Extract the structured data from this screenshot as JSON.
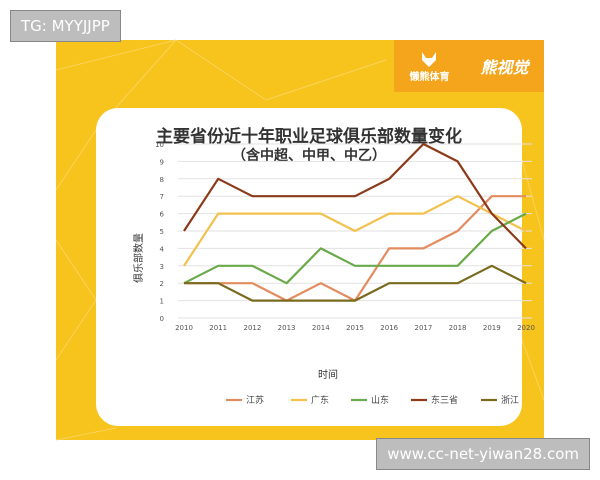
{
  "overlays": {
    "top_left_tag": "TG: MYYJJPP",
    "bottom_right_url": "www.cc-net-yiwan28.com"
  },
  "brand": {
    "left_text": "懒熊体育",
    "right_text": "熊视觉"
  },
  "colors": {
    "background": "#f7c31d",
    "brand_bar": "#f4a51c"
  },
  "chart_data": {
    "type": "line",
    "title": "主要省份近十年职业足球俱乐部数量变化",
    "subtitle": "（含中超、中甲、中乙）",
    "xlabel": "时间",
    "ylabel": "俱乐部数量",
    "x": [
      "2010",
      "2011",
      "2012",
      "2013",
      "2014",
      "2015",
      "2016",
      "2017",
      "2018",
      "2019",
      "2020"
    ],
    "yticks": [
      0,
      1,
      2,
      3,
      4,
      5,
      6,
      7,
      8,
      9,
      10
    ],
    "ylim": [
      0,
      10
    ],
    "grid": true,
    "legend_position": "bottom",
    "series": [
      {
        "name": "江苏",
        "color": "#e28b5e",
        "values": [
          2,
          2,
          2,
          1,
          2,
          1,
          4,
          4,
          5,
          7,
          7
        ]
      },
      {
        "name": "广东",
        "color": "#f2c14e",
        "values": [
          3,
          6,
          6,
          6,
          6,
          5,
          6,
          6,
          7,
          6,
          5
        ]
      },
      {
        "name": "山东",
        "color": "#6aaa4a",
        "values": [
          2,
          3,
          3,
          2,
          4,
          3,
          3,
          3,
          3,
          5,
          6
        ]
      },
      {
        "name": "东三省",
        "color": "#8b3a1a",
        "values": [
          5,
          8,
          7,
          7,
          7,
          7,
          8,
          10,
          9,
          6,
          4
        ]
      },
      {
        "name": "浙江",
        "color": "#7a6a1e",
        "values": [
          2,
          2,
          1,
          1,
          1,
          1,
          2,
          2,
          2,
          3,
          2
        ]
      }
    ]
  }
}
